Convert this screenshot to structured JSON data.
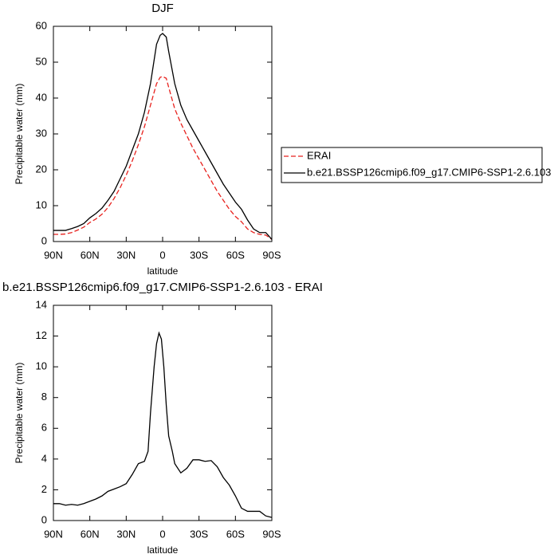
{
  "chart_data": [
    {
      "type": "line",
      "title": "DJF",
      "xlabel": "latitude",
      "ylabel": "Precipitable water (mm)",
      "x": [
        90,
        85,
        80,
        75,
        70,
        65,
        60,
        55,
        50,
        45,
        40,
        35,
        30,
        25,
        20,
        15,
        10,
        5,
        2,
        0,
        -3,
        -5,
        -10,
        -15,
        -20,
        -25,
        -30,
        -35,
        -40,
        -45,
        -50,
        -55,
        -60,
        -65,
        -70,
        -75,
        -80,
        -85,
        -90
      ],
      "series": [
        {
          "name": "ERAI",
          "color": "#e8221e",
          "line_style": "dashed",
          "values": [
            2,
            2,
            2.1,
            2.5,
            3.2,
            4,
            5.3,
            6.3,
            7.6,
            9.5,
            12,
            15,
            18.5,
            22.5,
            27,
            32,
            38,
            44,
            45.8,
            46,
            45.5,
            43,
            37,
            33,
            29.5,
            26,
            23,
            20,
            17,
            14,
            11.5,
            9,
            7,
            5.5,
            3.5,
            2.5,
            2,
            1.8,
            0.6
          ]
        },
        {
          "name": "b.e21.BSSP126cmip6.f09_g17.CMIP6-SSP1-2.6.103",
          "color": "#000000",
          "line_style": "solid",
          "values": [
            3.1,
            3.1,
            3.1,
            3.6,
            4.2,
            5,
            6.6,
            7.8,
            9.3,
            11.5,
            14,
            17.5,
            21,
            25.5,
            30,
            36,
            44,
            55,
            57.5,
            58,
            57,
            53,
            44,
            38,
            34,
            31,
            28,
            25,
            22,
            19,
            16,
            13.5,
            11,
            9,
            6,
            3.5,
            2.5,
            2.5,
            0.6
          ]
        }
      ],
      "xlim": [
        90,
        -90
      ],
      "xticks": [
        {
          "value": 90,
          "label": "90N"
        },
        {
          "value": 60,
          "label": "60N"
        },
        {
          "value": 30,
          "label": "30N"
        },
        0,
        {
          "value": -30,
          "label": "30S"
        },
        {
          "value": -60,
          "label": "60S"
        },
        {
          "value": -90,
          "label": "90S"
        }
      ],
      "ylim": [
        0,
        60
      ],
      "yticks": [
        0,
        10,
        20,
        30,
        40,
        50,
        60
      ],
      "legend": "right"
    },
    {
      "type": "line",
      "title": "b.e21.BSSP126cmip6.f09_g17.CMIP6-SSP1-2.6.103 - ERAI",
      "xlabel": "latitude",
      "ylabel": "Precipitable water (mm)",
      "x": [
        90,
        85,
        80,
        75,
        70,
        65,
        60,
        55,
        50,
        45,
        40,
        35,
        30,
        25,
        20,
        15,
        12,
        10,
        7,
        5,
        3,
        1,
        -1,
        -3,
        -5,
        -8,
        -10,
        -15,
        -20,
        -25,
        -30,
        -35,
        -40,
        -45,
        -50,
        -55,
        -60,
        -65,
        -70,
        -75,
        -80,
        -85,
        -90
      ],
      "series": [
        {
          "color": "#000000",
          "line_style": "solid",
          "values": [
            1.1,
            1.1,
            1.0,
            1.05,
            1.0,
            1.1,
            1.25,
            1.4,
            1.6,
            1.9,
            2.05,
            2.2,
            2.4,
            3.0,
            3.7,
            3.85,
            4.5,
            7,
            10,
            11.5,
            12.2,
            11.8,
            10,
            7.5,
            5.5,
            4.5,
            3.7,
            3.1,
            3.4,
            3.95,
            3.95,
            3.85,
            3.9,
            3.5,
            2.8,
            2.3,
            1.6,
            0.8,
            0.6,
            0.6,
            0.6,
            0.3,
            0.2
          ]
        }
      ],
      "xlim": [
        90,
        -90
      ],
      "xticks": [
        {
          "value": 90,
          "label": "90N"
        },
        {
          "value": 60,
          "label": "60N"
        },
        {
          "value": 30,
          "label": "30N"
        },
        0,
        {
          "value": -30,
          "label": "30S"
        },
        {
          "value": -60,
          "label": "60S"
        },
        {
          "value": -90,
          "label": "90S"
        }
      ],
      "ylim": [
        0,
        14
      ],
      "yticks": [
        0,
        2,
        4,
        6,
        8,
        10,
        12,
        14
      ]
    }
  ]
}
